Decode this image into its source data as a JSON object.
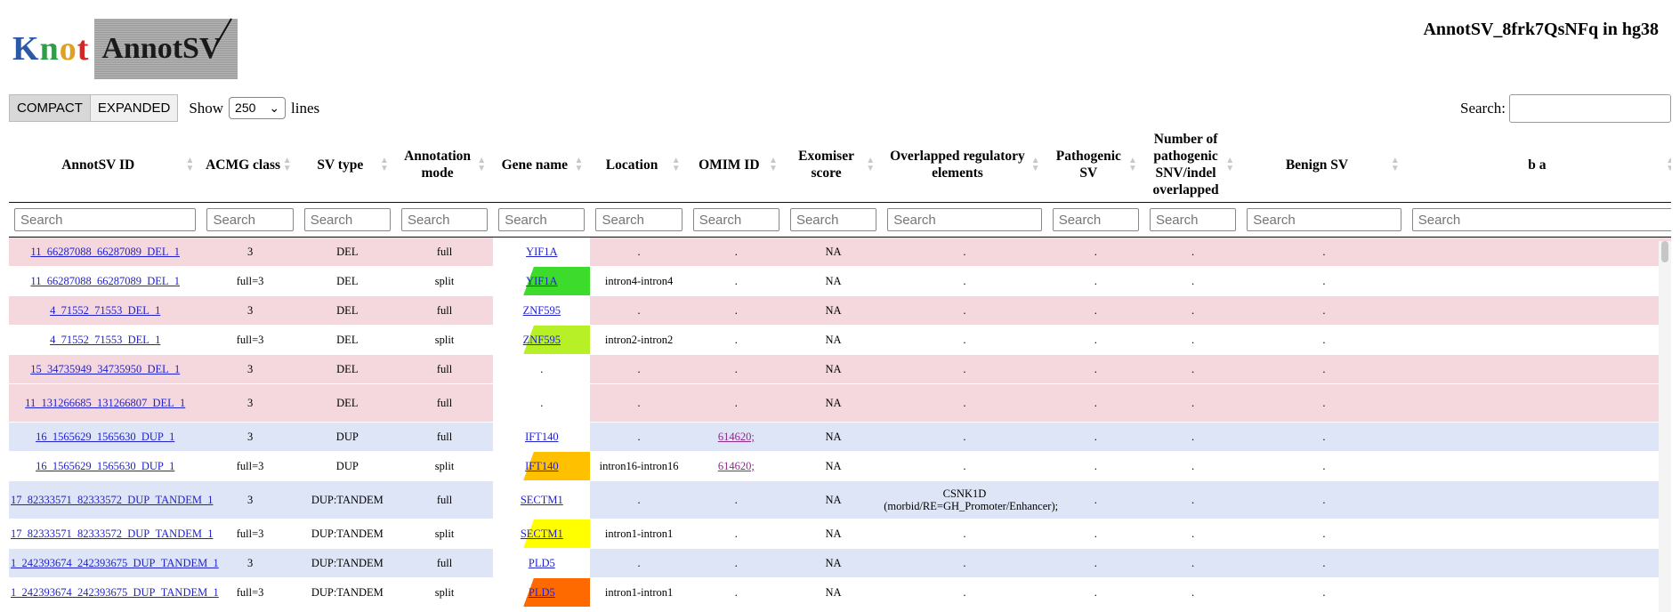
{
  "logo": {
    "knot_letters": [
      "K",
      "n",
      "o",
      "t"
    ],
    "annot": "AnnotSV"
  },
  "page_title": "AnnotSV_8frk7QsNFq in hg38",
  "view_buttons": {
    "compact": "COMPACT",
    "expanded": "EXPANDED"
  },
  "show": {
    "label": "Show",
    "value": "250",
    "suffix": "lines"
  },
  "search": {
    "label": "Search:",
    "value": ""
  },
  "columns": [
    "AnnotSV ID",
    "ACMG class",
    "SV type",
    "Annotation mode",
    "Gene name",
    "Location",
    "OMIM ID",
    "Exomiser score",
    "Overlapped regulatory elements",
    "Pathogenic SV",
    "Number of pathogenic SNV/indel overlapped",
    "Benign SV",
    "b a"
  ],
  "column_search_placeholder": "Search",
  "rows": [
    {
      "id": "11_66287088_66287089_DEL_1",
      "acmg": "3",
      "svtype": "DEL",
      "mode": "full",
      "gene": "YIF1A",
      "location": ".",
      "omim": ".",
      "exomiser": "NA",
      "regulatory": ".",
      "path_sv": ".",
      "path_snv": ".",
      "benign": ".",
      "color": "pink",
      "gene_color": null
    },
    {
      "id": "11_66287088_66287089_DEL_1",
      "acmg": "full=3",
      "svtype": "DEL",
      "mode": "split",
      "gene": "YIF1A",
      "location": "intron4-intron4",
      "omim": ".",
      "exomiser": "NA",
      "regulatory": ".",
      "path_sv": ".",
      "path_snv": ".",
      "benign": ".",
      "color": "white",
      "gene_color": "#3cdb2c"
    },
    {
      "id": "4_71552_71553_DEL_1",
      "acmg": "3",
      "svtype": "DEL",
      "mode": "full",
      "gene": "ZNF595",
      "location": ".",
      "omim": ".",
      "exomiser": "NA",
      "regulatory": ".",
      "path_sv": ".",
      "path_snv": ".",
      "benign": ".",
      "color": "pink",
      "gene_color": null
    },
    {
      "id": "4_71552_71553_DEL_1",
      "acmg": "full=3",
      "svtype": "DEL",
      "mode": "split",
      "gene": "ZNF595",
      "location": "intron2-intron2",
      "omim": ".",
      "exomiser": "NA",
      "regulatory": ".",
      "path_sv": ".",
      "path_snv": ".",
      "benign": ".",
      "color": "white",
      "gene_color": "#b8f028"
    },
    {
      "id": "15_34735949_34735950_DEL_1",
      "acmg": "3",
      "svtype": "DEL",
      "mode": "full",
      "gene": ".",
      "location": ".",
      "omim": ".",
      "exomiser": "NA",
      "regulatory": ".",
      "path_sv": ".",
      "path_snv": ".",
      "benign": ".",
      "color": "pink",
      "gene_color": null
    },
    {
      "id": "11_131266685_131266807_DEL_1",
      "acmg": "3",
      "svtype": "DEL",
      "mode": "full",
      "gene": ".",
      "location": ".",
      "omim": ".",
      "exomiser": "NA",
      "regulatory": ".",
      "path_sv": ".",
      "path_snv": ".",
      "benign": ".",
      "color": "pink",
      "gene_color": null,
      "tall": true
    },
    {
      "id": "16_1565629_1565630_DUP_1",
      "acmg": "3",
      "svtype": "DUP",
      "mode": "full",
      "gene": "IFT140",
      "location": ".",
      "omim": "614620;",
      "exomiser": "NA",
      "regulatory": ".",
      "path_sv": ".",
      "path_snv": ".",
      "benign": ".",
      "color": "blue",
      "gene_color": null
    },
    {
      "id": "16_1565629_1565630_DUP_1",
      "acmg": "full=3",
      "svtype": "DUP",
      "mode": "split",
      "gene": "IFT140",
      "location": "intron16-intron16",
      "omim": "614620;",
      "exomiser": "NA",
      "regulatory": ".",
      "path_sv": ".",
      "path_snv": ".",
      "benign": ".",
      "color": "white",
      "gene_color": "#ffc000"
    },
    {
      "id": "17_82333571_82333572_DUP_TANDEM_1",
      "acmg": "3",
      "svtype": "DUP:TANDEM",
      "mode": "full",
      "gene": "SECTM1",
      "location": ".",
      "omim": ".",
      "exomiser": "NA",
      "regulatory": "CSNK1D\n(morbid/RE=GH_Promoter/Enhancer);",
      "path_sv": ".",
      "path_snv": ".",
      "benign": ".",
      "color": "blue",
      "gene_color": null,
      "tall": true
    },
    {
      "id": "17_82333571_82333572_DUP_TANDEM_1",
      "acmg": "full=3",
      "svtype": "DUP:TANDEM",
      "mode": "split",
      "gene": "SECTM1",
      "location": "intron1-intron1",
      "omim": ".",
      "exomiser": "NA",
      "regulatory": ".",
      "path_sv": ".",
      "path_snv": ".",
      "benign": ".",
      "color": "white",
      "gene_color": "#ffff00"
    },
    {
      "id": "1_242393674_242393675_DUP_TANDEM_1",
      "acmg": "3",
      "svtype": "DUP:TANDEM",
      "mode": "full",
      "gene": "PLD5",
      "location": ".",
      "omim": ".",
      "exomiser": "NA",
      "regulatory": ".",
      "path_sv": ".",
      "path_snv": ".",
      "benign": ".",
      "color": "blue",
      "gene_color": null
    },
    {
      "id": "1_242393674_242393675_DUP_TANDEM_1",
      "acmg": "full=3",
      "svtype": "DUP:TANDEM",
      "mode": "split",
      "gene": "PLD5",
      "location": "intron1-intron1",
      "omim": ".",
      "exomiser": "NA",
      "regulatory": ".",
      "path_sv": ".",
      "path_snv": ".",
      "benign": ".",
      "color": "white",
      "gene_color": "#ff6a00"
    }
  ]
}
